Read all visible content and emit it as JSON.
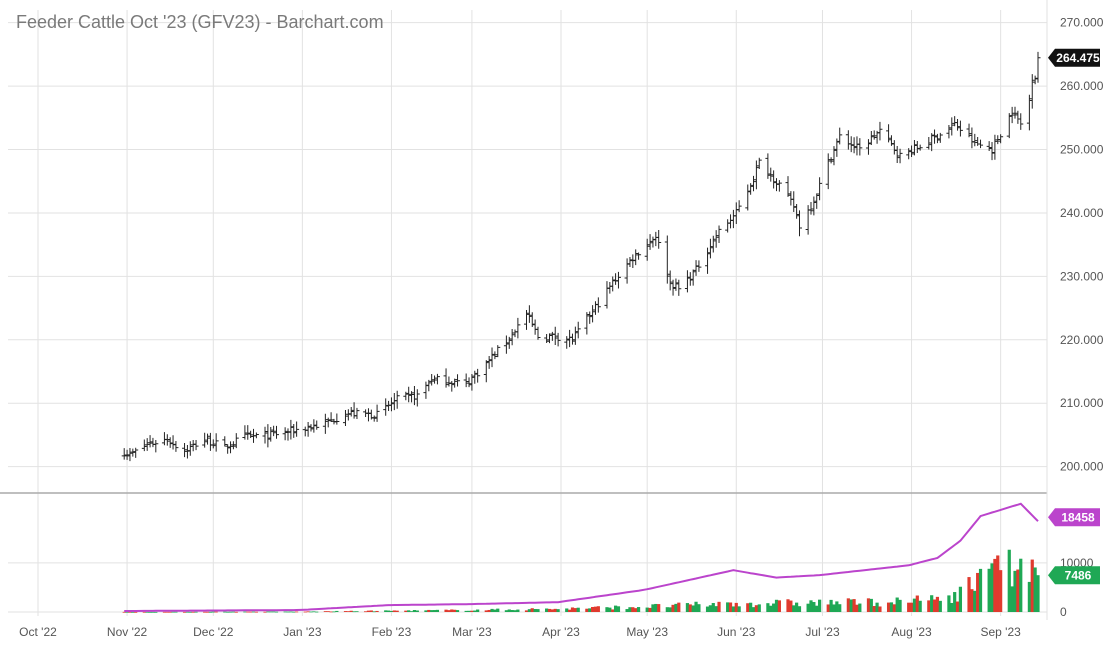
{
  "chart_data": {
    "type": "ohlc",
    "title": "Feeder Cattle Oct '23 (GFV23) - Barchart.com",
    "x_tick_labels": [
      "Oct '22",
      "Nov '22",
      "Dec '22",
      "Jan '23",
      "Feb '23",
      "Mar '23",
      "Apr '23",
      "May '23",
      "Jun '23",
      "Jul '23",
      "Aug '23",
      "Sep '23"
    ],
    "x_range": [
      "2022-10-01",
      "2023-09-14"
    ],
    "price_axis": {
      "ticks": [
        "200.000",
        "210.000",
        "220.000",
        "230.000",
        "240.000",
        "250.000",
        "260.000",
        "270.000"
      ],
      "range": [
        196,
        272
      ]
    },
    "volume_axis": {
      "ticks": [
        "0",
        "10000"
      ],
      "range": [
        0,
        24000
      ]
    },
    "last_price": {
      "label": "264.475",
      "value": 264.475
    },
    "open_interest_last": {
      "label": "18458",
      "value": 18458
    },
    "volume_last": {
      "label": "7486",
      "value": 7486
    },
    "colors": {
      "price": "#222222",
      "open_interest": "#bb44cc",
      "volume_up": "#1fa855",
      "volume_down": "#e03a2e",
      "last_price_bg": "#111111"
    },
    "price_anchors": [
      [
        "2022-10-31",
        202.3
      ],
      [
        "2022-11-02",
        201.8
      ],
      [
        "2022-11-08",
        203.5
      ],
      [
        "2022-11-15",
        204.3
      ],
      [
        "2022-11-21",
        202.5
      ],
      [
        "2022-11-28",
        204.3
      ],
      [
        "2022-12-05",
        203.0
      ],
      [
        "2022-12-12",
        204.8
      ],
      [
        "2022-12-19",
        204.8
      ],
      [
        "2022-12-28",
        205.6
      ],
      [
        "2023-01-09",
        206.8
      ],
      [
        "2023-01-16",
        208.4
      ],
      [
        "2023-01-27",
        208.2
      ],
      [
        "2023-02-03",
        210.6
      ],
      [
        "2023-02-10",
        211.2
      ],
      [
        "2023-02-15",
        213.8
      ],
      [
        "2023-02-27",
        213.1
      ],
      [
        "2023-03-06",
        216.2
      ],
      [
        "2023-03-13",
        219.8
      ],
      [
        "2023-03-20",
        224.0
      ],
      [
        "2023-03-24",
        220.5
      ],
      [
        "2023-03-31",
        220.5
      ],
      [
        "2023-04-05",
        220.0
      ],
      [
        "2023-04-12",
        224.5
      ],
      [
        "2023-04-19",
        229.0
      ],
      [
        "2023-04-26",
        233.0
      ],
      [
        "2023-05-03",
        236.0
      ],
      [
        "2023-05-04",
        236.5
      ],
      [
        "2023-05-09",
        229.0
      ],
      [
        "2023-05-12",
        228.0
      ],
      [
        "2023-05-18",
        231.0
      ],
      [
        "2023-05-25",
        236.5
      ],
      [
        "2023-06-01",
        240.0
      ],
      [
        "2023-06-06",
        244.5
      ],
      [
        "2023-06-09",
        248.0
      ],
      [
        "2023-06-16",
        244.5
      ],
      [
        "2023-06-21",
        241.0
      ],
      [
        "2023-06-23",
        238.0
      ],
      [
        "2023-06-28",
        242.0
      ],
      [
        "2023-07-03",
        248.0
      ],
      [
        "2023-07-07",
        252.0
      ],
      [
        "2023-07-14",
        250.0
      ],
      [
        "2023-07-21",
        253.0
      ],
      [
        "2023-07-28",
        249.0
      ],
      [
        "2023-08-04",
        250.5
      ],
      [
        "2023-08-11",
        252.5
      ],
      [
        "2023-08-16",
        254.0
      ],
      [
        "2023-08-23",
        251.0
      ],
      [
        "2023-08-29",
        250.0
      ],
      [
        "2023-09-05",
        256.0
      ],
      [
        "2023-09-08",
        254.0
      ],
      [
        "2023-09-11",
        258.0
      ],
      [
        "2023-09-12",
        261.5
      ],
      [
        "2023-09-13",
        261.5
      ],
      [
        "2023-09-14",
        264.475
      ]
    ],
    "volume_anchors": [
      [
        "2022-10-31",
        20
      ],
      [
        "2022-12-31",
        80
      ],
      [
        "2023-01-31",
        250
      ],
      [
        "2023-02-28",
        400
      ],
      [
        "2023-03-31",
        650
      ],
      [
        "2023-04-30",
        1100
      ],
      [
        "2023-05-31",
        1700
      ],
      [
        "2023-06-30",
        1900
      ],
      [
        "2023-07-31",
        2100
      ],
      [
        "2023-08-15",
        3200
      ],
      [
        "2023-08-25",
        6500
      ],
      [
        "2023-08-30",
        13500
      ],
      [
        "2023-09-05",
        8000
      ],
      [
        "2023-09-14",
        7486
      ]
    ],
    "open_interest_anchors": [
      [
        "2022-10-31",
        200
      ],
      [
        "2022-12-31",
        400
      ],
      [
        "2023-01-31",
        1400
      ],
      [
        "2023-02-28",
        1600
      ],
      [
        "2023-03-31",
        2000
      ],
      [
        "2023-04-30",
        4500
      ],
      [
        "2023-05-31",
        8500
      ],
      [
        "2023-06-15",
        7000
      ],
      [
        "2023-06-30",
        7500
      ],
      [
        "2023-07-31",
        9500
      ],
      [
        "2023-08-10",
        11000
      ],
      [
        "2023-08-18",
        14500
      ],
      [
        "2023-08-25",
        19500
      ],
      [
        "2023-09-05",
        21500
      ],
      [
        "2023-09-08",
        22000
      ],
      [
        "2023-09-14",
        18458
      ]
    ]
  }
}
